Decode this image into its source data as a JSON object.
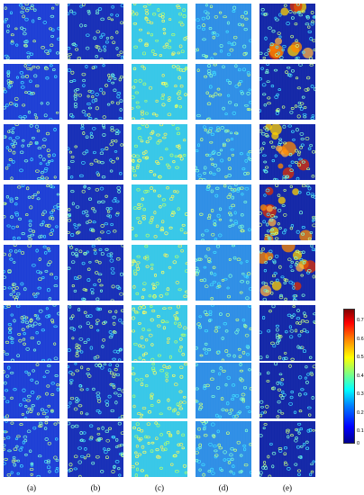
{
  "column_labels": [
    "(a)",
    "(b)",
    "(c)",
    "(d)",
    "(e)"
  ],
  "rows": 8,
  "colorbar": {
    "ticks": [
      "0.7",
      "0.6",
      "0.5",
      "0.4",
      "0.3",
      "0.2",
      "0.1",
      "0"
    ],
    "tick_values": [
      0.7,
      0.6,
      0.5,
      0.4,
      0.3,
      0.2,
      0.1,
      0
    ],
    "range": [
      0,
      0.75
    ],
    "colormap": "jet"
  },
  "columns": [
    {
      "label": "(a)",
      "background": "#1e3fd6",
      "level": 0.15,
      "hot": false
    },
    {
      "label": "(b)",
      "background": "#1830b8",
      "level": 0.18,
      "hot": false
    },
    {
      "label": "(c)",
      "background": "#38c8e8",
      "level": 0.4,
      "hot": false
    },
    {
      "label": "(d)",
      "background": "#2f8fe6",
      "level": 0.32,
      "hot": false
    },
    {
      "label": "(e)",
      "background": "#1428a8",
      "level": 0.25,
      "hot": true
    }
  ],
  "hot_rows_e": [
    0,
    2,
    3,
    4
  ]
}
